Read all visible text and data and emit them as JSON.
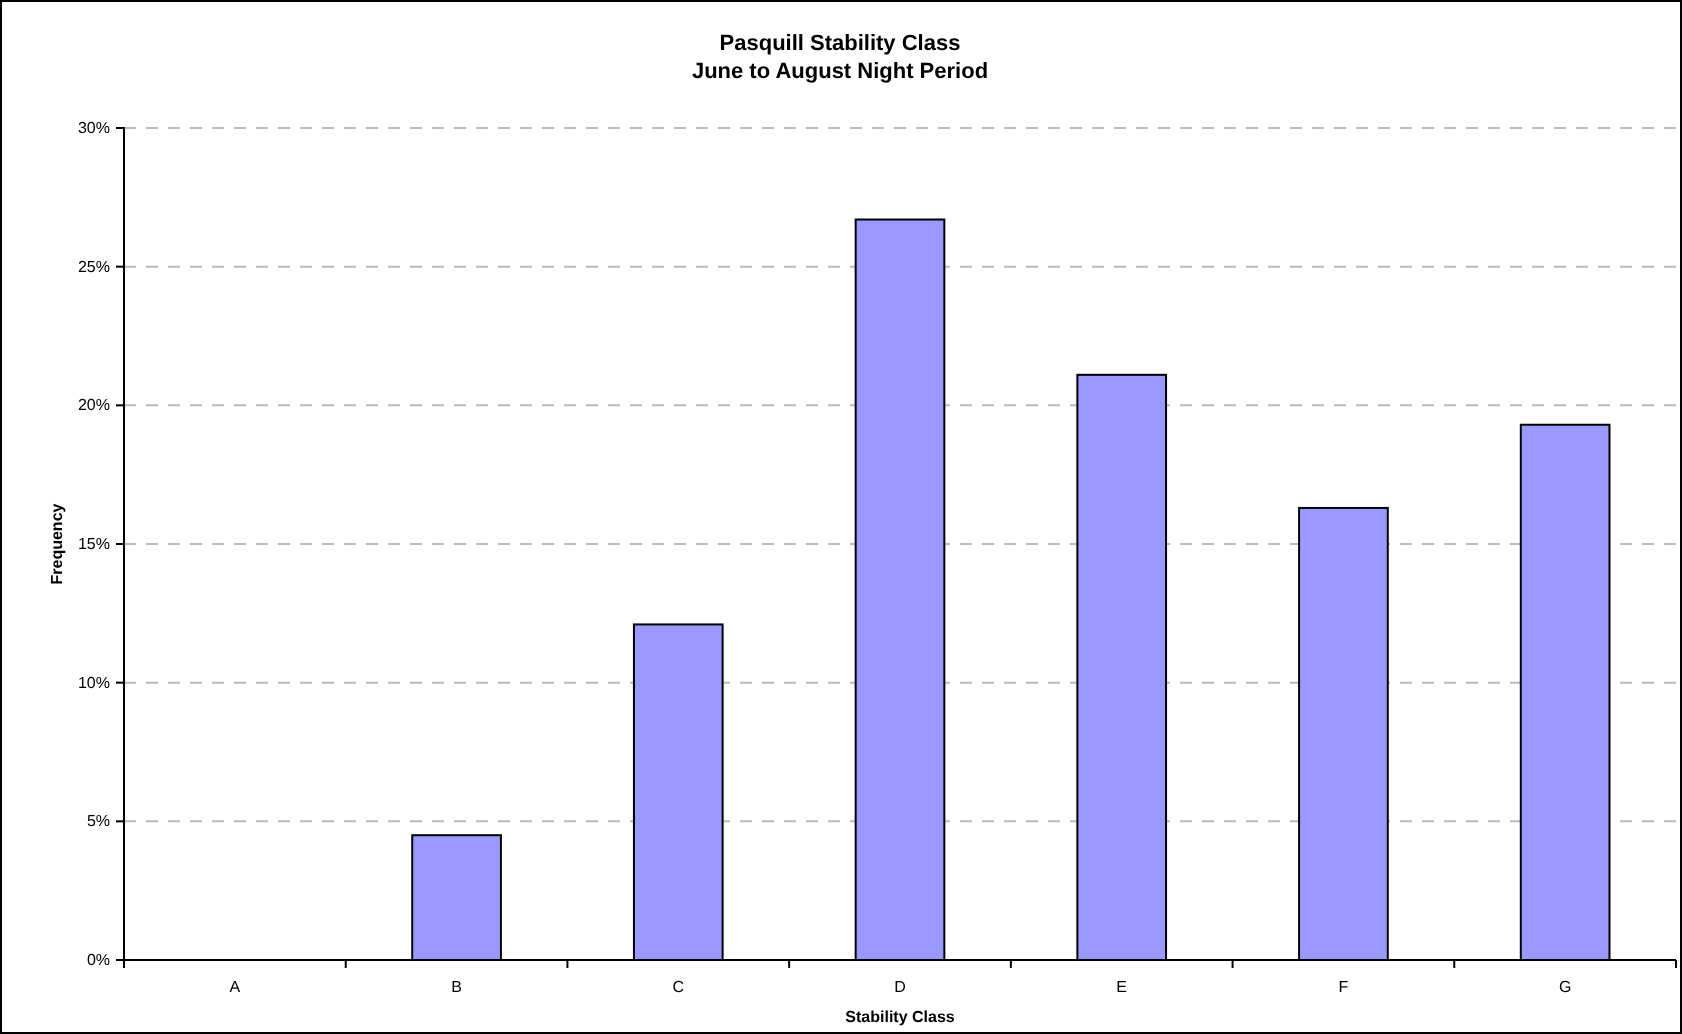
{
  "chart_data": {
    "type": "bar",
    "title": "Pasquill Stability Class",
    "subtitle": "June to August Night Period",
    "xlabel": "Stability Class",
    "ylabel": "Frequency",
    "categories": [
      "A",
      "B",
      "C",
      "D",
      "E",
      "F",
      "G"
    ],
    "values": [
      0,
      4.5,
      12.1,
      26.7,
      21.1,
      16.3,
      19.3
    ],
    "color": "#9999ff",
    "ylim": [
      0,
      30
    ],
    "yticks": [
      {
        "value": 0,
        "label": "0%"
      },
      {
        "value": 5,
        "label": "5%"
      },
      {
        "value": 10,
        "label": "10%"
      },
      {
        "value": 15,
        "label": "15%"
      },
      {
        "value": 20,
        "label": "20%"
      },
      {
        "value": 25,
        "label": "25%"
      },
      {
        "value": 30,
        "label": "30%"
      }
    ],
    "grid": "y"
  }
}
